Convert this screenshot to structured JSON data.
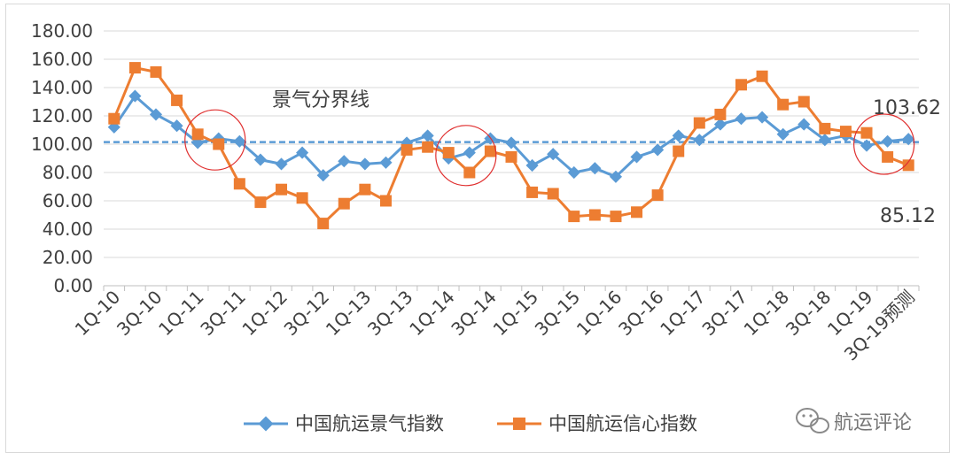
{
  "chart_data": {
    "type": "line",
    "title": "",
    "xlabel": "",
    "ylabel": "",
    "ylim": [
      0,
      180
    ],
    "y_ticks": [
      "0.00",
      "20.00",
      "40.00",
      "60.00",
      "80.00",
      "100.00",
      "120.00",
      "140.00",
      "160.00",
      "180.00"
    ],
    "grid": "horizontal",
    "legend": "bottom",
    "categories": [
      "1Q-10",
      "2Q-10",
      "3Q-10",
      "4Q-10",
      "1Q-11",
      "2Q-11",
      "3Q-11",
      "4Q-11",
      "1Q-12",
      "2Q-12",
      "3Q-12",
      "4Q-12",
      "1Q-13",
      "2Q-13",
      "3Q-13",
      "4Q-13",
      "1Q-14",
      "2Q-14",
      "3Q-14",
      "4Q-14",
      "1Q-15",
      "2Q-15",
      "3Q-15",
      "4Q-15",
      "1Q-16",
      "2Q-16",
      "3Q-16",
      "4Q-16",
      "1Q-17",
      "2Q-17",
      "3Q-17",
      "4Q-17",
      "1Q-18",
      "2Q-18",
      "3Q-18",
      "4Q-18",
      "1Q-19",
      "2Q-19",
      "3Q-19预测"
    ],
    "tick_labels": [
      "1Q-10",
      "3Q-10",
      "1Q-11",
      "3Q-11",
      "1Q-12",
      "3Q-12",
      "1Q-13",
      "3Q-13",
      "1Q-14",
      "3Q-14",
      "1Q-15",
      "3Q-15",
      "1Q-16",
      "3Q-16",
      "1Q-17",
      "3Q-17",
      "1Q-18",
      "3Q-18",
      "1Q-19",
      "3Q-19预测"
    ],
    "series": [
      {
        "name": "中国航运景气指数",
        "color": "#5b9bd5",
        "marker": "diamond",
        "values": [
          112,
          134,
          121,
          113,
          101,
          104,
          102,
          89,
          86,
          94,
          78,
          88,
          86,
          87,
          101,
          106,
          90,
          94,
          104,
          101,
          85,
          93,
          80,
          83,
          77,
          91,
          96,
          106,
          103,
          114,
          118,
          119,
          107,
          114,
          103,
          106,
          99,
          102,
          103.62
        ]
      },
      {
        "name": "中国航运信心指数",
        "color": "#ed7d31",
        "marker": "square",
        "values": [
          118,
          154,
          151,
          131,
          107,
          100,
          72,
          59,
          68,
          62,
          44,
          58,
          68,
          60,
          96,
          98,
          94,
          80,
          95,
          91,
          66,
          65,
          49,
          50,
          49,
          52,
          64,
          95,
          115,
          121,
          142,
          148,
          128,
          130,
          111,
          109,
          108,
          91,
          85.12
        ]
      }
    ],
    "reference_line": {
      "label": "景气分界线",
      "value": 101.5,
      "color": "#5b9bd5"
    },
    "end_labels": {
      "series_1_last": "103.62",
      "series_2_last": "85.12"
    },
    "highlight_circles": [
      {
        "category_index": 5,
        "value": 103
      },
      {
        "category_index": 17,
        "value": 92
      },
      {
        "category_index": 37,
        "value": 100
      }
    ]
  },
  "watermark": {
    "text": "航运评论",
    "icon": "wechat-icon"
  }
}
